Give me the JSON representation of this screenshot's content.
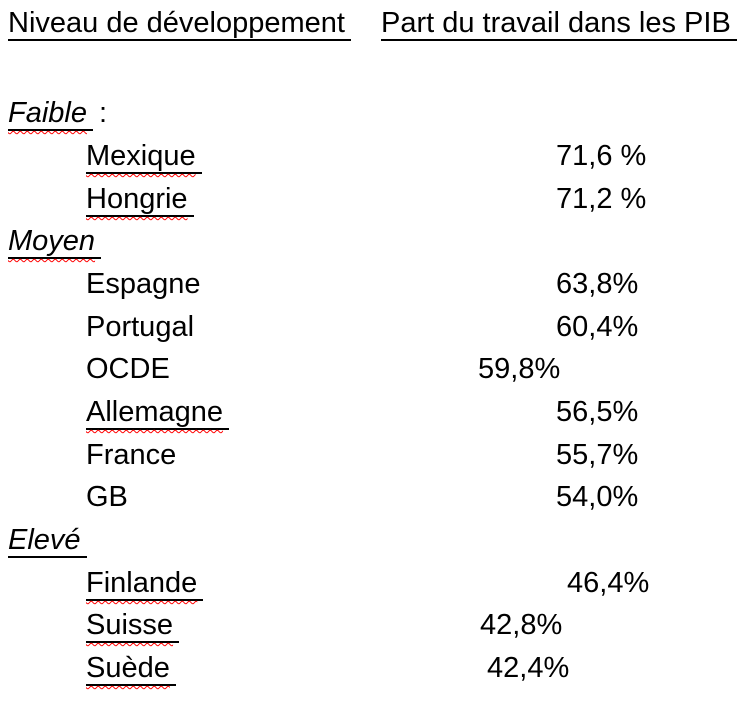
{
  "page": {
    "background_color": "#ffffff",
    "text_color": "#000000",
    "squiggle_color": "#ff0000"
  },
  "headers": {
    "left": "Niveau de développement",
    "right": "Part du travail dans les PIB"
  },
  "rows": [
    {
      "type": "section",
      "label": "Faible",
      "suffix": ":"
    },
    {
      "type": "country",
      "label": "Mexique",
      "value": "71,6 %"
    },
    {
      "type": "country",
      "label": "Hongrie",
      "value": "71,2 %"
    },
    {
      "type": "section",
      "label": "Moyen"
    },
    {
      "type": "country",
      "label": "Espagne",
      "value": "63,8%"
    },
    {
      "type": "country",
      "label": "Portugal",
      "value": "60,4%"
    },
    {
      "type": "country",
      "label": "OCDE",
      "value": "59,8%"
    },
    {
      "type": "country",
      "label": "Allemagne",
      "value": "56,5%"
    },
    {
      "type": "country",
      "label": "France",
      "value": "55,7%"
    },
    {
      "type": "country",
      "label": "GB",
      "value": "54,0%"
    },
    {
      "type": "section",
      "label": "Elevé"
    },
    {
      "type": "country",
      "label": "Finlande",
      "value": "46,4%"
    },
    {
      "type": "country",
      "label": "Suisse",
      "value": "42,8%"
    },
    {
      "type": "country",
      "label": "Suède",
      "value": "42,4%"
    }
  ]
}
